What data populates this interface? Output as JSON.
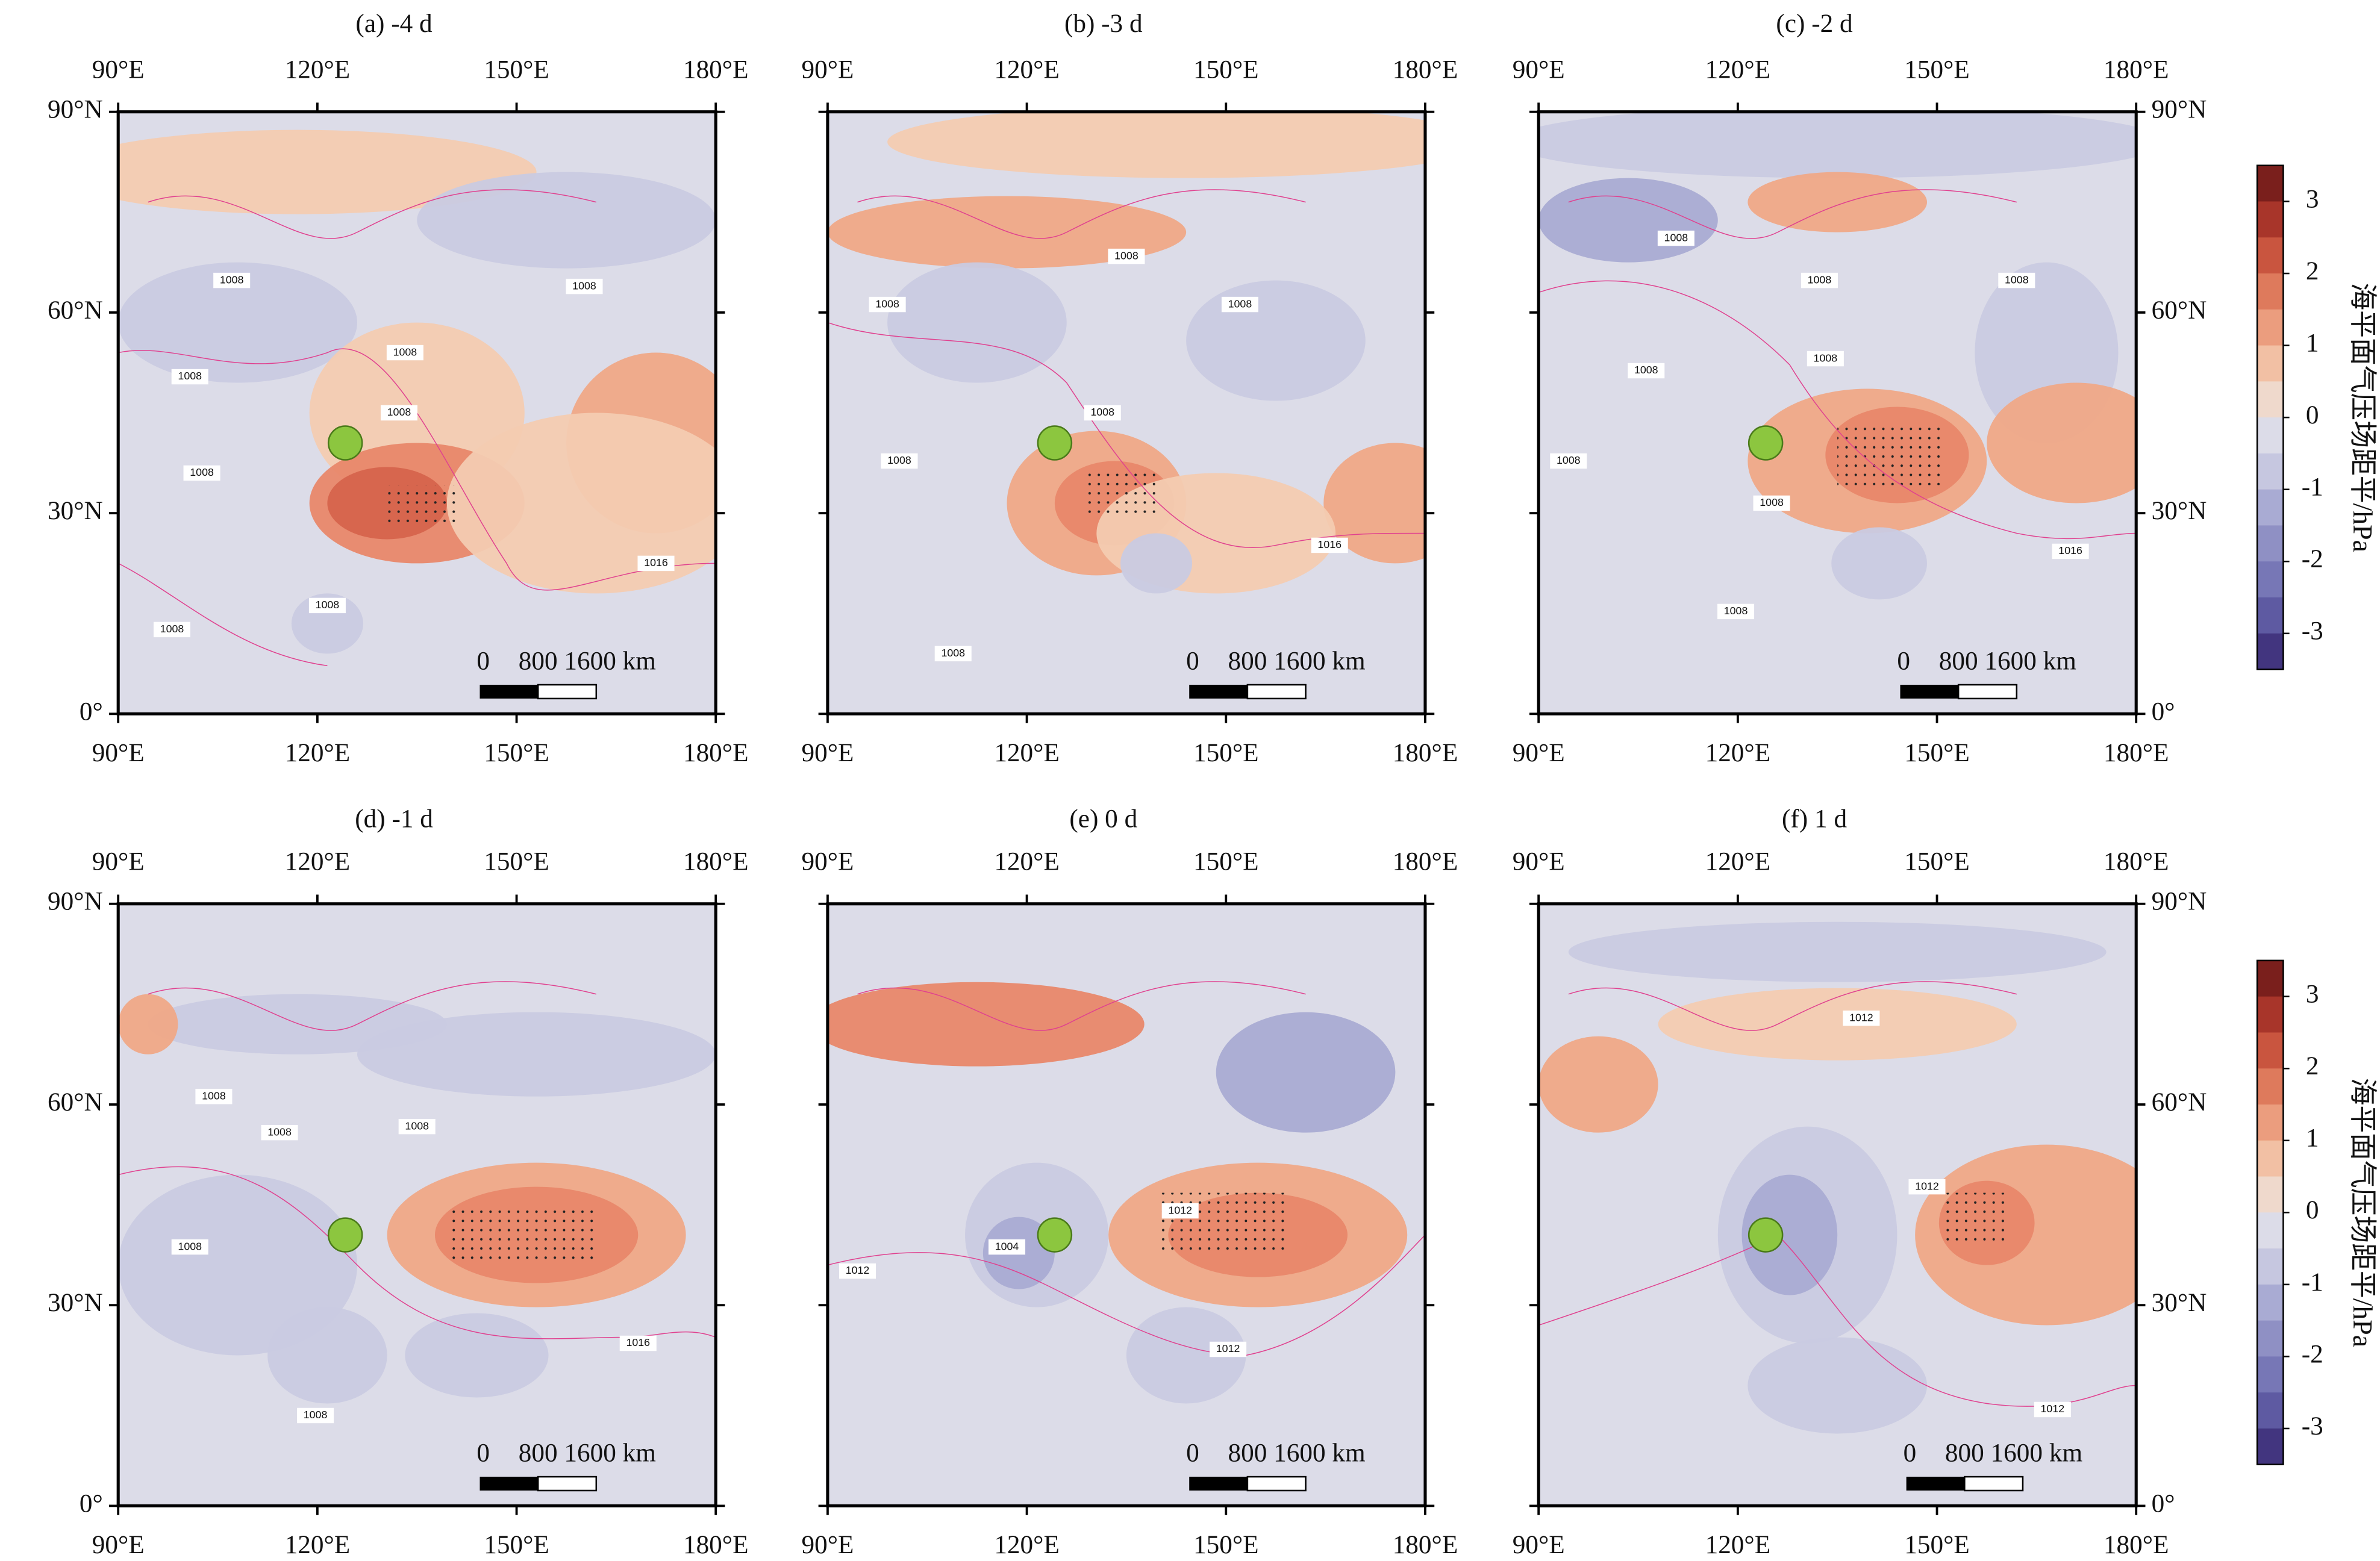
{
  "panels": [
    {
      "title": "(a) -4 d",
      "contour_labels": [
        "1008",
        "1008",
        "1008",
        "1008",
        "1008",
        "1008",
        "1016",
        "1008",
        "1008"
      ]
    },
    {
      "title": "(b) -3 d",
      "contour_labels": [
        "1008",
        "1008",
        "1008",
        "1008",
        "1008",
        "1016",
        "1008"
      ]
    },
    {
      "title": "(c) -2 d",
      "contour_labels": [
        "1008",
        "1008",
        "1008",
        "1008",
        "1008",
        "1008",
        "1008",
        "1016",
        "1008"
      ]
    },
    {
      "title": "(d) -1 d",
      "contour_labels": [
        "1008",
        "1008",
        "1008",
        "1008",
        "1016",
        "1008"
      ]
    },
    {
      "title": "(e) 0 d",
      "contour_labels": [
        "1012",
        "1004",
        "1012",
        "1012"
      ]
    },
    {
      "title": "(f) 1 d",
      "contour_labels": [
        "1012",
        "1012",
        "1012"
      ]
    }
  ],
  "lon_labels": [
    "90°E",
    "120°E",
    "150°E",
    "180°E"
  ],
  "lat_labels": [
    "0°",
    "30°N",
    "60°N",
    "90°N"
  ],
  "scale_bar": [
    "0",
    "800",
    "1600 km"
  ],
  "colorbar": {
    "label": "海平面气压场距平/hPa",
    "ticks": [
      3,
      2,
      1,
      0,
      -1,
      -2,
      -3
    ]
  }
}
